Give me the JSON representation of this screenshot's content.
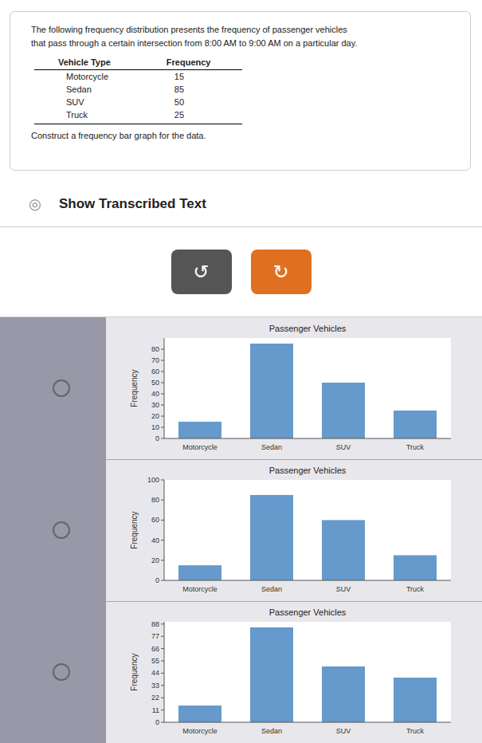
{
  "intro": "The following frequency distribution presents the frequency of passenger vehicles\nthat pass through a certain intersection from 8:00 AM to 9:00 AM on a particular day.",
  "table": {
    "headers": [
      "Vehicle Type",
      "Frequency"
    ],
    "rows": [
      [
        "Motorcycle",
        15
      ],
      [
        "Sedan",
        85
      ],
      [
        "SUV",
        50
      ],
      [
        "Truck",
        25
      ]
    ]
  },
  "instruction": "Construct a frequency bar graph for the data.",
  "show_icon": "◎",
  "show_text": "Show Transcribed Text",
  "buttons": [
    {
      "label": "↺",
      "color": "#555555"
    },
    {
      "label": "↻",
      "color": "#e07020"
    }
  ],
  "chart_data": [
    {
      "type": "bar",
      "title": "Passenger Vehicles",
      "ylabel": "Frequency",
      "categories": [
        "Motorcycle",
        "Sedan",
        "SUV",
        "Truck"
      ],
      "values": [
        15,
        85,
        50,
        25
      ],
      "color": "#6699cc",
      "ylim": [
        0,
        90
      ],
      "yticks": [
        0,
        10,
        20,
        30,
        40,
        50,
        60,
        70,
        80
      ],
      "grid": false
    },
    {
      "type": "bar",
      "title": "Passenger Vehicles",
      "ylabel": "Frequency",
      "categories": [
        "Motorcycle",
        "Sedan",
        "SUV",
        "Truck"
      ],
      "values": [
        15,
        85,
        60,
        25
      ],
      "color": "#6699cc",
      "ylim": [
        0,
        100
      ],
      "yticks": [
        0,
        20,
        40,
        60,
        80,
        100
      ],
      "grid": false
    },
    {
      "type": "bar",
      "title": "Passenger Vehicles",
      "ylabel": "Frequency",
      "categories": [
        "Motorcycle",
        "Sedan",
        "SUV",
        "Truck"
      ],
      "values": [
        15,
        85,
        50,
        40
      ],
      "color": "#6699cc",
      "ylim": [
        0,
        90
      ],
      "yticks": [
        0,
        11,
        22,
        33,
        44,
        55,
        66,
        77,
        88
      ],
      "grid": false
    }
  ]
}
